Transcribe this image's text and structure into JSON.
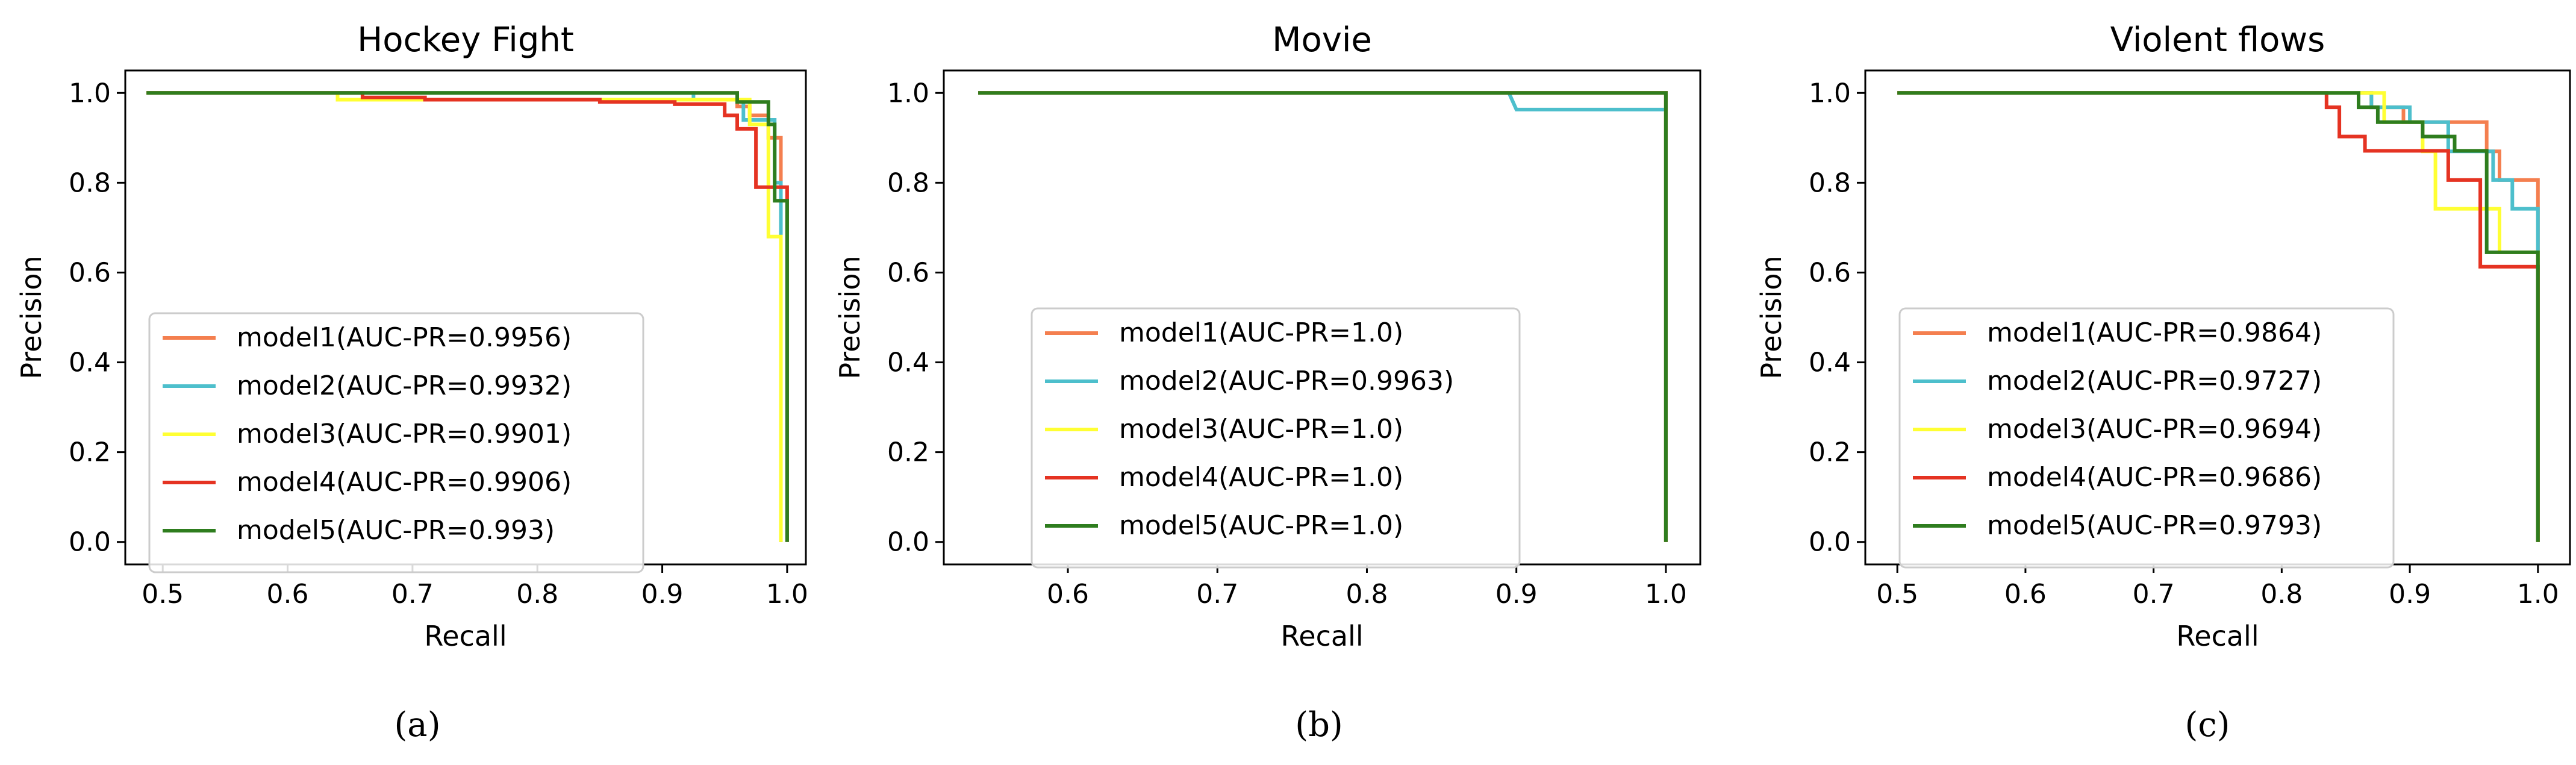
{
  "colors": {
    "model1": "#f47f4f",
    "model2": "#4dbfcc",
    "model3": "#ffff33",
    "model4": "#e53322",
    "model5": "#2e7d1e"
  },
  "chart_data": [
    {
      "type": "line",
      "title": "Hockey Fight",
      "xlabel": "Recall",
      "ylabel": "Precision",
      "xlim": [
        0.47,
        1.015
      ],
      "ylim": [
        -0.05,
        1.05
      ],
      "xticks": [
        "0.5",
        "0.6",
        "0.7",
        "0.8",
        "0.9",
        "1.0"
      ],
      "yticks": [
        "0.0",
        "0.2",
        "0.4",
        "0.6",
        "0.8",
        "1.0"
      ],
      "grid": false,
      "legend_position": "lower-left",
      "caption": "(a)",
      "series": [
        {
          "name": "model1(AUC-PR=0.9956)",
          "color_key": "model1",
          "x": [
            0.487,
            0.96,
            0.96,
            0.97,
            0.97,
            0.985,
            0.985,
            0.995,
            0.995
          ],
          "y": [
            1.0,
            1.0,
            0.97,
            0.97,
            0.95,
            0.95,
            0.9,
            0.9,
            0.0
          ]
        },
        {
          "name": "model2(AUC-PR=0.9932)",
          "color_key": "model2",
          "x": [
            0.487,
            0.925,
            0.925,
            0.965,
            0.965,
            0.99,
            0.99,
            0.995,
            0.995
          ],
          "y": [
            1.0,
            1.0,
            0.985,
            0.985,
            0.94,
            0.94,
            0.8,
            0.8,
            0.0
          ]
        },
        {
          "name": "model3(AUC-PR=0.9901)",
          "color_key": "model3",
          "x": [
            0.487,
            0.64,
            0.64,
            0.97,
            0.97,
            0.985,
            0.985,
            0.995,
            0.995
          ],
          "y": [
            1.0,
            1.0,
            0.985,
            0.985,
            0.93,
            0.93,
            0.68,
            0.68,
            0.0
          ]
        },
        {
          "name": "model4(AUC-PR=0.9906)",
          "color_key": "model4",
          "x": [
            0.487,
            0.66,
            0.66,
            0.71,
            0.71,
            0.85,
            0.85,
            0.91,
            0.91,
            0.95,
            0.95,
            0.96,
            0.96,
            0.975,
            0.975,
            0.98,
            0.98,
            1.0,
            1.0
          ],
          "y": [
            1.0,
            1.0,
            0.99,
            0.99,
            0.985,
            0.985,
            0.98,
            0.98,
            0.975,
            0.975,
            0.95,
            0.95,
            0.92,
            0.92,
            0.79,
            0.79,
            0.79,
            0.79,
            0.0
          ]
        },
        {
          "name": "model5(AUC-PR=0.993)",
          "color_key": "model5",
          "x": [
            0.487,
            0.96,
            0.96,
            0.985,
            0.985,
            0.99,
            0.99,
            1.0,
            1.0
          ],
          "y": [
            1.0,
            1.0,
            0.98,
            0.98,
            0.93,
            0.93,
            0.76,
            0.76,
            0.0
          ]
        }
      ]
    },
    {
      "type": "line",
      "title": "Movie",
      "xlabel": "Recall",
      "ylabel": "Precision",
      "xlim": [
        0.517,
        1.023
      ],
      "ylim": [
        -0.05,
        1.05
      ],
      "xticks": [
        "0.6",
        "0.7",
        "0.8",
        "0.9",
        "1.0"
      ],
      "yticks": [
        "0.0",
        "0.2",
        "0.4",
        "0.6",
        "0.8",
        "1.0"
      ],
      "grid": false,
      "legend_position": "lower-left",
      "caption": "(b)",
      "series": [
        {
          "name": "model1(AUC-PR=1.0)",
          "color_key": "model1",
          "x": [
            0.54,
            1.0,
            1.0
          ],
          "y": [
            1.0,
            1.0,
            0.0
          ]
        },
        {
          "name": "model2(AUC-PR=0.9963)",
          "color_key": "model2",
          "x": [
            0.54,
            0.895,
            0.9,
            1.0,
            1.0
          ],
          "y": [
            1.0,
            1.0,
            0.963,
            0.963,
            0.0
          ]
        },
        {
          "name": "model3(AUC-PR=1.0)",
          "color_key": "model3",
          "x": [
            0.54,
            1.0,
            1.0
          ],
          "y": [
            1.0,
            1.0,
            0.0
          ]
        },
        {
          "name": "model4(AUC-PR=1.0)",
          "color_key": "model4",
          "x": [
            0.54,
            1.0,
            1.0
          ],
          "y": [
            1.0,
            1.0,
            0.0
          ]
        },
        {
          "name": "model5(AUC-PR=1.0)",
          "color_key": "model5",
          "x": [
            0.54,
            1.0,
            1.0
          ],
          "y": [
            1.0,
            1.0,
            0.0
          ]
        }
      ]
    },
    {
      "type": "line",
      "title": "Violent flows",
      "xlabel": "Recall",
      "ylabel": "Precision",
      "xlim": [
        0.475,
        1.025
      ],
      "ylim": [
        -0.05,
        1.05
      ],
      "xticks": [
        "0.5",
        "0.6",
        "0.7",
        "0.8",
        "0.9",
        "1.0"
      ],
      "yticks": [
        "0.0",
        "0.2",
        "0.4",
        "0.6",
        "0.8",
        "1.0"
      ],
      "grid": false,
      "legend_position": "lower-left",
      "caption": "(c)",
      "series": [
        {
          "name": "model1(AUC-PR=0.9864)",
          "color_key": "model1",
          "x": [
            0.5,
            0.87,
            0.87,
            0.895,
            0.895,
            0.96,
            0.96,
            0.97,
            0.97,
            1.0,
            1.0
          ],
          "y": [
            1.0,
            1.0,
            0.968,
            0.968,
            0.935,
            0.935,
            0.87,
            0.87,
            0.806,
            0.806,
            0.0
          ]
        },
        {
          "name": "model2(AUC-PR=0.9727)",
          "color_key": "model2",
          "x": [
            0.5,
            0.87,
            0.87,
            0.9,
            0.9,
            0.93,
            0.93,
            0.965,
            0.965,
            0.98,
            0.98,
            1.0,
            1.0
          ],
          "y": [
            1.0,
            1.0,
            0.968,
            0.968,
            0.935,
            0.935,
            0.87,
            0.87,
            0.806,
            0.806,
            0.742,
            0.742,
            0.0
          ]
        },
        {
          "name": "model3(AUC-PR=0.9694)",
          "color_key": "model3",
          "x": [
            0.5,
            0.86,
            0.86,
            0.88,
            0.88,
            0.91,
            0.91,
            0.92,
            0.92,
            0.97,
            0.97,
            1.0,
            1.0
          ],
          "y": [
            1.0,
            1.0,
            1.0,
            1.0,
            0.935,
            0.935,
            0.87,
            0.87,
            0.742,
            0.742,
            0.645,
            0.645,
            0.0
          ]
        },
        {
          "name": "model4(AUC-PR=0.9686)",
          "color_key": "model4",
          "x": [
            0.5,
            0.835,
            0.835,
            0.845,
            0.845,
            0.865,
            0.865,
            0.93,
            0.93,
            0.955,
            0.955,
            1.0,
            1.0
          ],
          "y": [
            1.0,
            1.0,
            0.968,
            0.968,
            0.903,
            0.903,
            0.871,
            0.871,
            0.806,
            0.806,
            0.613,
            0.613,
            0.0
          ]
        },
        {
          "name": "model5(AUC-PR=0.9793)",
          "color_key": "model5",
          "x": [
            0.5,
            0.86,
            0.86,
            0.875,
            0.875,
            0.91,
            0.91,
            0.935,
            0.935,
            0.96,
            0.96,
            1.0,
            1.0
          ],
          "y": [
            1.0,
            1.0,
            0.968,
            0.968,
            0.935,
            0.935,
            0.903,
            0.903,
            0.871,
            0.871,
            0.645,
            0.645,
            0.0
          ]
        }
      ]
    }
  ]
}
